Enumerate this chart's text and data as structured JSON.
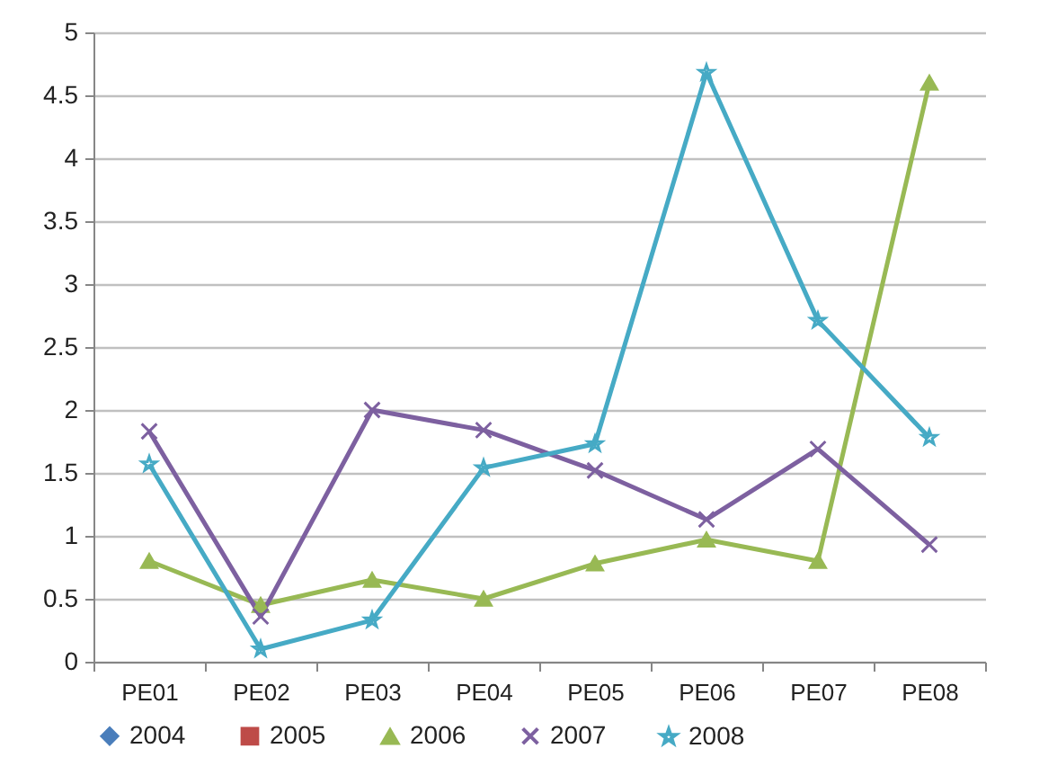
{
  "chart_data": {
    "type": "line",
    "categories": [
      "PE01",
      "PE02",
      "PE03",
      "PE04",
      "PE05",
      "PE06",
      "PE07",
      "PE08"
    ],
    "series": [
      {
        "name": "2004",
        "color": "#4a7ebb",
        "marker": "diamond",
        "values": [
          null,
          null,
          null,
          null,
          null,
          null,
          null,
          null
        ]
      },
      {
        "name": "2005",
        "color": "#be4b48",
        "marker": "square",
        "values": [
          null,
          null,
          null,
          null,
          null,
          null,
          null,
          null
        ]
      },
      {
        "name": "2006",
        "color": "#98b954",
        "marker": "triangle",
        "values": [
          0.8,
          0.45,
          0.65,
          0.5,
          0.78,
          0.97,
          0.8,
          4.6
        ]
      },
      {
        "name": "2007",
        "color": "#7d60a0",
        "marker": "cross",
        "values": [
          1.83,
          0.36,
          2.0,
          1.84,
          1.52,
          1.13,
          1.69,
          0.93
        ]
      },
      {
        "name": "2008",
        "color": "#46aac5",
        "marker": "star",
        "values": [
          1.57,
          0.1,
          0.33,
          1.54,
          1.73,
          4.68,
          2.71,
          1.78
        ]
      }
    ],
    "ylim": [
      0,
      5
    ],
    "yticks": [
      0,
      0.5,
      1,
      1.5,
      2,
      2.5,
      3,
      3.5,
      4,
      4.5,
      5
    ],
    "grid": "y",
    "legend": "bottom",
    "line_style": "solid"
  }
}
